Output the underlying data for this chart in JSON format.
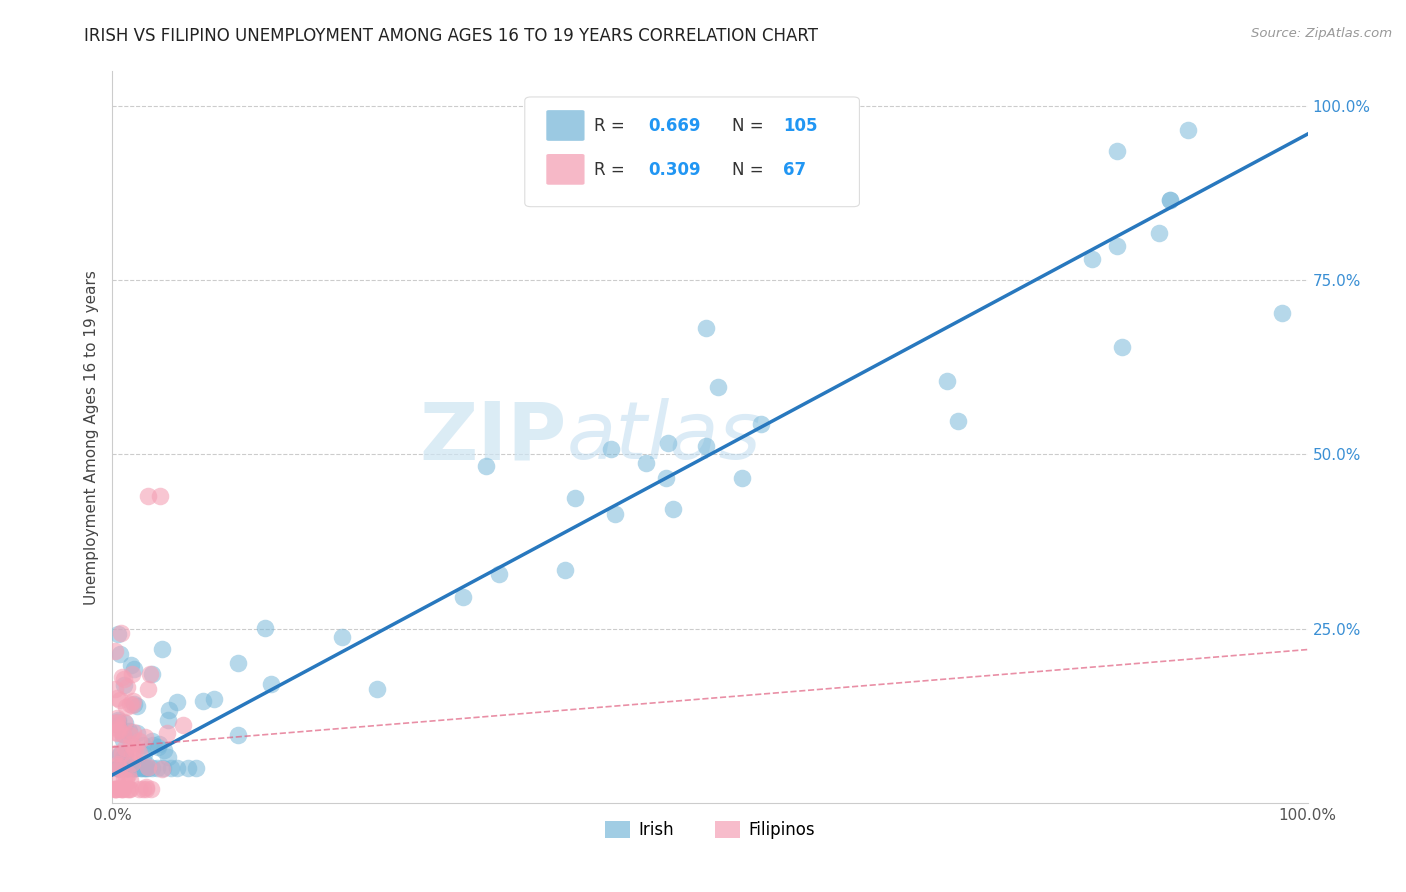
{
  "title": "IRISH VS FILIPINO UNEMPLOYMENT AMONG AGES 16 TO 19 YEARS CORRELATION CHART",
  "source": "Source: ZipAtlas.com",
  "ylabel": "Unemployment Among Ages 16 to 19 years",
  "xlim": [
    0,
    1.0
  ],
  "ylim": [
    0,
    1.05
  ],
  "xtick_vals": [
    0.0,
    1.0
  ],
  "xtick_labels": [
    "0.0%",
    "100.0%"
  ],
  "ytick_vals": [
    0.25,
    0.5,
    0.75,
    1.0
  ],
  "ytick_labels": [
    "25.0%",
    "50.0%",
    "75.0%",
    "100.0%"
  ],
  "irish_R": 0.669,
  "irish_N": 105,
  "filipino_R": 0.309,
  "filipino_N": 67,
  "irish_color": "#7ab8d9",
  "filipino_color": "#f4a0b5",
  "irish_line_color": "#2878be",
  "filipino_line_color": "#e06080",
  "watermark_zip": "ZIP",
  "watermark_atlas": "atlas",
  "grid_color": "#cccccc"
}
